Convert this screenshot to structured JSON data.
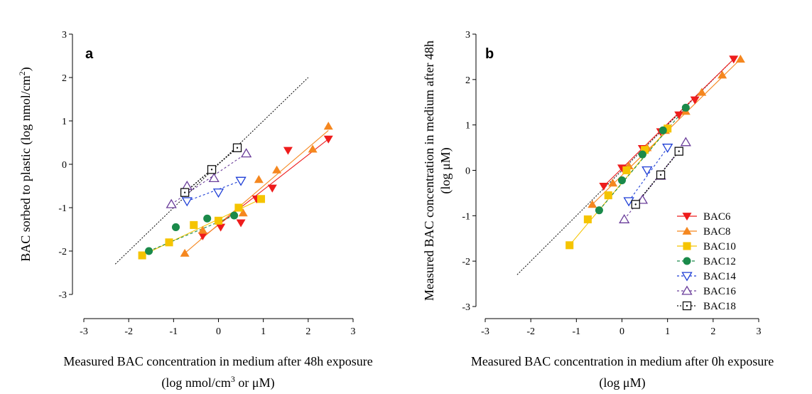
{
  "chart_data": [
    {
      "panel": "a",
      "type": "scatter",
      "xlabel_line1": "Measured BAC concentration in medium after 48h exposure",
      "xlabel_line2_pre": "(log nmol/cm",
      "xlabel_line2_sup": "3",
      "xlabel_line2_post": " or μM)",
      "ylabel_pre": "BAC sorbed to plastic (log nmol/cm",
      "ylabel_sup": "2",
      "ylabel_post": ")",
      "xlim": [
        -3,
        3
      ],
      "ylim": [
        -3,
        3
      ],
      "xticks": [
        "-3",
        "-2",
        "-1",
        "0",
        "1",
        "2",
        "3"
      ],
      "yticks": [
        "-3",
        "-2",
        "-1",
        "0",
        "1",
        "2",
        "3"
      ],
      "reference_line": {
        "x": [
          -2.3,
          2.0
        ],
        "y": [
          -2.3,
          2.0
        ]
      },
      "series": [
        {
          "name": "BAC6",
          "points": [
            [
              -0.35,
              -1.65
            ],
            [
              0.05,
              -1.45
            ],
            [
              0.5,
              -1.35
            ],
            [
              0.85,
              -0.8
            ],
            [
              1.2,
              -0.55
            ],
            [
              1.55,
              0.32
            ],
            [
              2.45,
              0.58
            ]
          ],
          "fit": [
            [
              -0.4,
              -1.72
            ],
            [
              2.45,
              0.58
            ]
          ]
        },
        {
          "name": "BAC8",
          "points": [
            [
              -0.75,
              -2.05
            ],
            [
              -0.35,
              -1.52
            ],
            [
              0.55,
              -1.12
            ],
            [
              0.9,
              -0.35
            ],
            [
              1.3,
              -0.13
            ],
            [
              2.1,
              0.35
            ],
            [
              2.45,
              0.88
            ]
          ],
          "fit": [
            [
              -0.75,
              -2.05
            ],
            [
              2.45,
              0.78
            ]
          ]
        },
        {
          "name": "BAC10",
          "points": [
            [
              -1.7,
              -2.1
            ],
            [
              -1.1,
              -1.8
            ],
            [
              -0.55,
              -1.4
            ],
            [
              0.0,
              -1.3
            ],
            [
              0.45,
              -1.0
            ],
            [
              0.95,
              -0.8
            ]
          ],
          "fit": [
            [
              -1.7,
              -2.1
            ],
            [
              0.95,
              -0.8
            ]
          ]
        },
        {
          "name": "BAC12",
          "points": [
            [
              -1.55,
              -2.0
            ],
            [
              -0.95,
              -1.45
            ],
            [
              -0.25,
              -1.25
            ],
            [
              0.35,
              -1.18
            ]
          ],
          "fit": [
            [
              -1.55,
              -2.0
            ],
            [
              0.35,
              -1.18
            ]
          ]
        },
        {
          "name": "BAC14",
          "points": [
            [
              -0.7,
              -0.85
            ],
            [
              0.0,
              -0.65
            ],
            [
              0.5,
              -0.38
            ]
          ],
          "fit": [
            [
              -0.7,
              -0.85
            ],
            [
              0.5,
              -0.38
            ]
          ]
        },
        {
          "name": "BAC16",
          "points": [
            [
              -1.05,
              -0.92
            ],
            [
              -0.7,
              -0.5
            ],
            [
              -0.1,
              -0.32
            ],
            [
              0.62,
              0.25
            ]
          ],
          "fit": [
            [
              -1.05,
              -0.92
            ],
            [
              0.62,
              0.25
            ]
          ]
        },
        {
          "name": "BAC18",
          "points": [
            [
              -0.75,
              -0.65
            ],
            [
              -0.15,
              -0.12
            ],
            [
              0.42,
              0.38
            ]
          ],
          "fit": [
            [
              -0.75,
              -0.65
            ],
            [
              0.42,
              0.38
            ]
          ]
        }
      ]
    },
    {
      "panel": "b",
      "type": "scatter",
      "xlabel_line1": "Measured BAC concentration in medium after 0h exposure",
      "xlabel_line2": "(log μM)",
      "ylabel_line1": "Measured BAC concentration in medium after 48h",
      "ylabel_line2": "(log μM)",
      "xlim": [
        -3,
        3
      ],
      "ylim": [
        -3,
        3
      ],
      "xticks": [
        "-3",
        "-2",
        "-1",
        "0",
        "1",
        "2",
        "3"
      ],
      "yticks": [
        "-3",
        "-2",
        "-1",
        "0",
        "1",
        "2",
        "3"
      ],
      "reference_line": {
        "x": [
          -2.3,
          2.5
        ],
        "y": [
          -2.3,
          2.5
        ]
      },
      "legend": "bottom-right",
      "series": [
        {
          "name": "BAC6",
          "points": [
            [
              -0.4,
              -0.35
            ],
            [
              0.0,
              0.05
            ],
            [
              0.45,
              0.48
            ],
            [
              0.85,
              0.85
            ],
            [
              1.25,
              1.22
            ],
            [
              1.6,
              1.55
            ],
            [
              2.45,
              2.45
            ]
          ],
          "fit": [
            [
              -0.4,
              -0.35
            ],
            [
              2.45,
              2.45
            ]
          ]
        },
        {
          "name": "BAC8",
          "points": [
            [
              -0.65,
              -0.75
            ],
            [
              -0.2,
              -0.28
            ],
            [
              0.15,
              0.1
            ],
            [
              0.55,
              0.5
            ],
            [
              0.95,
              0.88
            ],
            [
              1.4,
              1.3
            ],
            [
              1.75,
              1.72
            ],
            [
              2.2,
              2.1
            ],
            [
              2.6,
              2.45
            ]
          ],
          "fit": [
            [
              -0.65,
              -0.75
            ],
            [
              2.6,
              2.45
            ]
          ]
        },
        {
          "name": "BAC10",
          "points": [
            [
              -1.15,
              -1.65
            ],
            [
              -0.75,
              -1.08
            ],
            [
              -0.3,
              -0.55
            ],
            [
              0.1,
              0.0
            ],
            [
              0.5,
              0.45
            ],
            [
              1.0,
              0.92
            ]
          ],
          "fit": [
            [
              -1.15,
              -1.65
            ],
            [
              1.0,
              0.92
            ]
          ]
        },
        {
          "name": "BAC12",
          "points": [
            [
              -0.5,
              -0.88
            ],
            [
              0.0,
              -0.22
            ],
            [
              0.45,
              0.35
            ],
            [
              0.9,
              0.88
            ],
            [
              1.4,
              1.38
            ]
          ],
          "fit": [
            [
              -0.5,
              -0.88
            ],
            [
              1.4,
              1.38
            ]
          ]
        },
        {
          "name": "BAC14",
          "points": [
            [
              0.15,
              -0.68
            ],
            [
              0.55,
              0.0
            ],
            [
              1.0,
              0.5
            ]
          ],
          "fit": [
            [
              0.15,
              -0.68
            ],
            [
              1.0,
              0.5
            ]
          ]
        },
        {
          "name": "BAC16",
          "points": [
            [
              0.05,
              -1.08
            ],
            [
              0.45,
              -0.65
            ],
            [
              0.85,
              -0.12
            ],
            [
              1.4,
              0.62
            ]
          ],
          "fit": [
            [
              0.05,
              -1.08
            ],
            [
              1.4,
              0.62
            ]
          ]
        },
        {
          "name": "BAC18",
          "points": [
            [
              0.3,
              -0.75
            ],
            [
              0.85,
              -0.1
            ],
            [
              1.25,
              0.42
            ]
          ],
          "fit": [
            [
              0.3,
              -0.75
            ],
            [
              1.25,
              0.42
            ]
          ]
        }
      ]
    }
  ],
  "series_style": {
    "BAC6": {
      "color": "#ee1c1c",
      "marker": "triangle-down-filled",
      "dash": ""
    },
    "BAC8": {
      "color": "#f5871f",
      "marker": "triangle-up-filled",
      "dash": ""
    },
    "BAC10": {
      "color": "#f5c400",
      "marker": "square-filled",
      "dash": ""
    },
    "BAC12": {
      "color": "#1a8a4a",
      "marker": "circle-filled",
      "dash": "4,3"
    },
    "BAC14": {
      "color": "#1f3fd6",
      "marker": "triangle-down-open",
      "dash": "3,3"
    },
    "BAC16": {
      "color": "#6a3d9a",
      "marker": "triangle-up-open",
      "dash": "3,3"
    },
    "BAC18": {
      "color": "#111111",
      "marker": "square-dot-open",
      "dash": "2,2"
    }
  }
}
